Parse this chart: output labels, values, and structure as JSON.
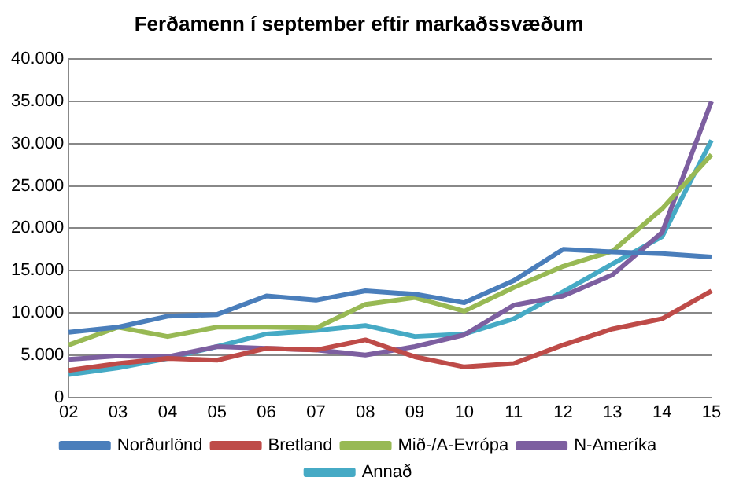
{
  "chart_data": {
    "type": "line",
    "title": "Ferðamenn í september eftir markaðssvæðum",
    "categories": [
      "02",
      "03",
      "04",
      "05",
      "06",
      "07",
      "08",
      "09",
      "10",
      "11",
      "12",
      "13",
      "14",
      "15"
    ],
    "series": [
      {
        "name": "Norðurlönd",
        "color": "#4a7ebb",
        "values": [
          7700,
          8300,
          9600,
          9800,
          12000,
          11500,
          12600,
          12200,
          11200,
          13800,
          17500,
          17200,
          17000,
          16600
        ]
      },
      {
        "name": "Bretland",
        "color": "#be4b48",
        "values": [
          3200,
          4000,
          4600,
          4400,
          5800,
          5600,
          6800,
          4800,
          3600,
          4000,
          6200,
          8100,
          9300,
          12600
        ]
      },
      {
        "name": "Mið-/A-Evrópa",
        "color": "#98b954",
        "values": [
          6200,
          8300,
          7200,
          8300,
          8300,
          8200,
          11000,
          11800,
          10200,
          13000,
          15500,
          17300,
          22300,
          28700
        ]
      },
      {
        "name": "N-Ameríka",
        "color": "#7d5fa0",
        "values": [
          4500,
          4900,
          4800,
          6000,
          5800,
          5600,
          5000,
          6000,
          7400,
          10900,
          12000,
          14500,
          19500,
          35000
        ]
      },
      {
        "name": "Annað",
        "color": "#46aac5",
        "values": [
          2700,
          3500,
          4600,
          6000,
          7500,
          7900,
          8500,
          7200,
          7500,
          9300,
          12500,
          15800,
          19000,
          30400
        ]
      }
    ],
    "ylim": [
      0,
      40000
    ],
    "yticks": [
      {
        "value": 0,
        "label": "0"
      },
      {
        "value": 5000,
        "label": "5.000"
      },
      {
        "value": 10000,
        "label": "10.000"
      },
      {
        "value": 15000,
        "label": "15.000"
      },
      {
        "value": 20000,
        "label": "20.000"
      },
      {
        "value": 25000,
        "label": "25.000"
      },
      {
        "value": 30000,
        "label": "30.000"
      },
      {
        "value": 35000,
        "label": "35.000"
      },
      {
        "value": 40000,
        "label": "40.000"
      }
    ],
    "grid": "y",
    "legend": "bottom",
    "marker": "none",
    "line_style": "solid"
  }
}
